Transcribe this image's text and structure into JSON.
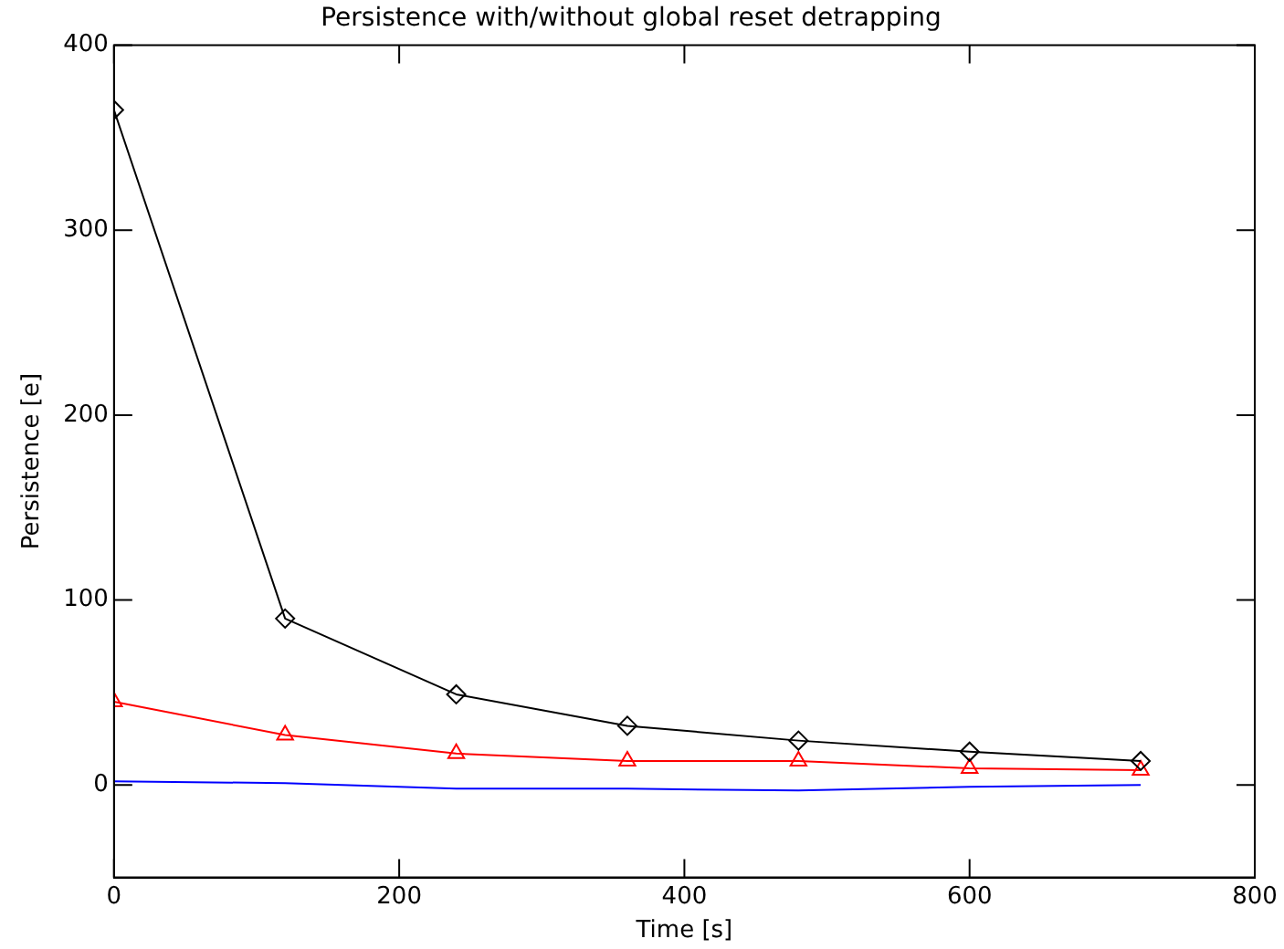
{
  "chart_data": {
    "type": "line",
    "title": "Persistence with/without global reset detrapping",
    "xlabel": "Time [s]",
    "ylabel": "Persistence [e]",
    "x": [
      0,
      120,
      240,
      360,
      480,
      600,
      720
    ],
    "series": [
      {
        "color": "#000000",
        "marker": "diamond",
        "values": [
          365,
          90,
          49,
          32,
          24,
          18,
          13
        ]
      },
      {
        "color": "#ff0000",
        "marker": "triangle",
        "values": [
          45,
          27,
          17,
          13,
          13,
          9,
          8
        ]
      },
      {
        "color": "#0000ff",
        "marker": "none",
        "values": [
          2,
          1,
          -2,
          -2,
          -3,
          -1,
          0
        ]
      }
    ],
    "xlim": [
      0,
      800
    ],
    "xticks": [
      0,
      200,
      400,
      600,
      800
    ],
    "ylim": [
      -50,
      400
    ],
    "yticks": [
      0,
      100,
      200,
      300,
      400
    ],
    "grid": false,
    "legend": false,
    "line_style": "solid"
  }
}
